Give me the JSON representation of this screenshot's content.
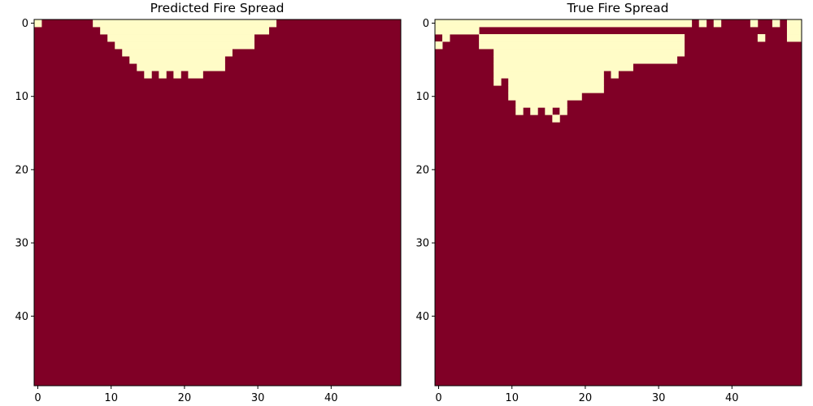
{
  "figure": {
    "background": "#ffffff",
    "colors": {
      "burned": "#fffcc7",
      "unburned": "#800026"
    }
  },
  "chart_data": [
    {
      "type": "heatmap",
      "title": "Predicted Fire Spread",
      "grid_size": [
        50,
        50
      ],
      "xlim": [
        0,
        49
      ],
      "ylim": [
        49,
        0
      ],
      "xticks": [
        0,
        10,
        20,
        30,
        40
      ],
      "yticks": [
        0,
        10,
        20,
        30,
        40
      ],
      "values_legend": {
        "1": "unburned (dark red)",
        "0": "burned (pale yellow)"
      },
      "burned_cells_by_row": [
        [
          [
            0,
            0
          ],
          [
            8,
            32
          ]
        ],
        [
          [
            9,
            31
          ]
        ],
        [
          [
            10,
            29
          ]
        ],
        [
          [
            11,
            29
          ]
        ],
        [
          [
            12,
            26
          ]
        ],
        [
          [
            13,
            25
          ]
        ],
        [
          [
            14,
            25
          ]
        ],
        [
          [
            15,
            15
          ],
          [
            17,
            17
          ],
          [
            19,
            19
          ],
          [
            21,
            22
          ]
        ]
      ],
      "default_value": 1
    },
    {
      "type": "heatmap",
      "title": "True Fire Spread",
      "grid_size": [
        50,
        50
      ],
      "xlim": [
        0,
        49
      ],
      "ylim": [
        49,
        0
      ],
      "xticks": [
        0,
        10,
        20,
        30,
        40
      ],
      "yticks": [
        0,
        10,
        20,
        30,
        40
      ],
      "values_legend": {
        "1": "unburned (dark red)",
        "0": "burned (pale yellow)"
      },
      "burned_cells_by_row": [
        [
          [
            0,
            34
          ],
          [
            36,
            36
          ],
          [
            38,
            38
          ],
          [
            43,
            43
          ],
          [
            46,
            46
          ],
          [
            48,
            49
          ]
        ],
        [
          [
            0,
            5
          ],
          [
            48,
            49
          ]
        ],
        [
          [
            1,
            1
          ],
          [
            6,
            33
          ],
          [
            44,
            44
          ],
          [
            48,
            49
          ]
        ],
        [
          [
            0,
            0
          ],
          [
            6,
            33
          ]
        ],
        [
          [
            8,
            33
          ]
        ],
        [
          [
            8,
            32
          ]
        ],
        [
          [
            8,
            26
          ]
        ],
        [
          [
            8,
            22
          ],
          [
            24,
            24
          ]
        ],
        [
          [
            8,
            8
          ],
          [
            10,
            22
          ]
        ],
        [
          [
            10,
            22
          ]
        ],
        [
          [
            10,
            19
          ]
        ],
        [
          [
            11,
            17
          ]
        ],
        [
          [
            11,
            11
          ],
          [
            13,
            13
          ],
          [
            15,
            15
          ],
          [
            17,
            17
          ]
        ],
        [
          [
            16,
            16
          ]
        ]
      ],
      "default_value": 1
    }
  ]
}
